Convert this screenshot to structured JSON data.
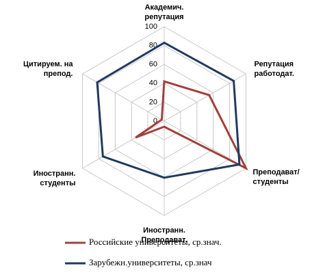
{
  "chart_data": {
    "type": "radar",
    "categories": [
      [
        "Академич.",
        "репутация"
      ],
      [
        "Репутация",
        "работодат."
      ],
      [
        "Преподават/",
        "студенты"
      ],
      [
        "Иностранн.",
        "Преподават."
      ],
      [
        "Иностранн.",
        "студенты"
      ],
      [
        "Цитируем. на",
        "препод."
      ]
    ],
    "series": [
      {
        "name": "Российские университеты, ср.знач.",
        "color": "#a0403c",
        "values": [
          42,
          55,
          100,
          6,
          35,
          3
        ]
      },
      {
        "name": "Зарубежн.университеты, ср.знач",
        "color": "#1f3a5f",
        "values": [
          83,
          85,
          92,
          60,
          75,
          82
        ]
      }
    ],
    "ylim": [
      0,
      100
    ],
    "yticks": [
      0,
      20,
      40,
      60,
      80,
      100
    ],
    "grid": true
  }
}
